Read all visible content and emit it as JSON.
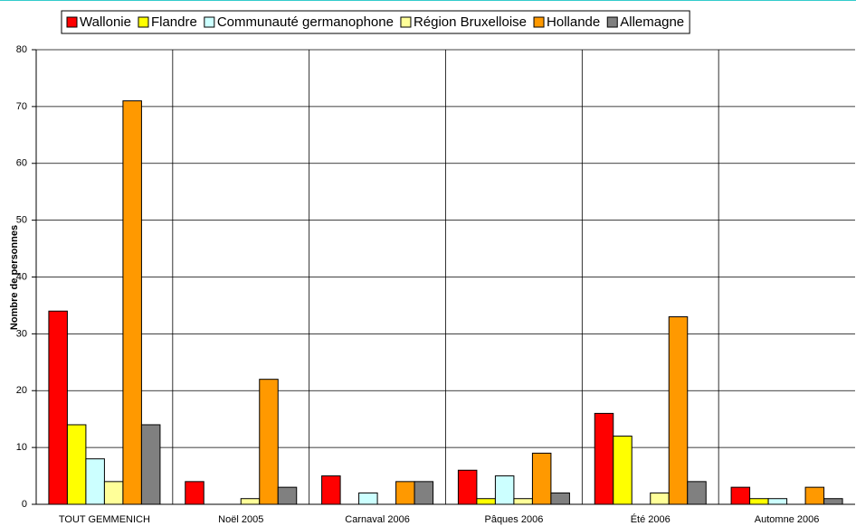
{
  "chart_data": {
    "type": "bar",
    "y_label": "Nombre de personnes",
    "categories": [
      "TOUT GEMMENICH",
      "Noël 2005",
      "Carnaval 2006",
      "Pâques 2006",
      "Été 2006",
      "Automne 2006"
    ],
    "series": [
      {
        "name": "Wallonie",
        "color": "#ff0000",
        "values": [
          34,
          4,
          5,
          6,
          16,
          3
        ]
      },
      {
        "name": "Flandre",
        "color": "#ffff00",
        "values": [
          14,
          0,
          0,
          1,
          12,
          1
        ]
      },
      {
        "name": "Communauté germanophone",
        "color": "#ccffff",
        "values": [
          8,
          0,
          2,
          5,
          0,
          1
        ]
      },
      {
        "name": "Région Bruxelloise",
        "color": "#ffff99",
        "values": [
          4,
          1,
          0,
          1,
          2,
          0
        ]
      },
      {
        "name": "Hollande",
        "color": "#ff9900",
        "values": [
          71,
          22,
          4,
          9,
          33,
          3
        ]
      },
      {
        "name": "Allemagne",
        "color": "#808080",
        "values": [
          14,
          3,
          4,
          2,
          4,
          1
        ]
      }
    ],
    "ylim": [
      0,
      80
    ],
    "yticks": [
      0,
      10,
      20,
      30,
      40,
      50,
      60,
      70,
      80
    ],
    "grid": true,
    "legend": "top"
  }
}
